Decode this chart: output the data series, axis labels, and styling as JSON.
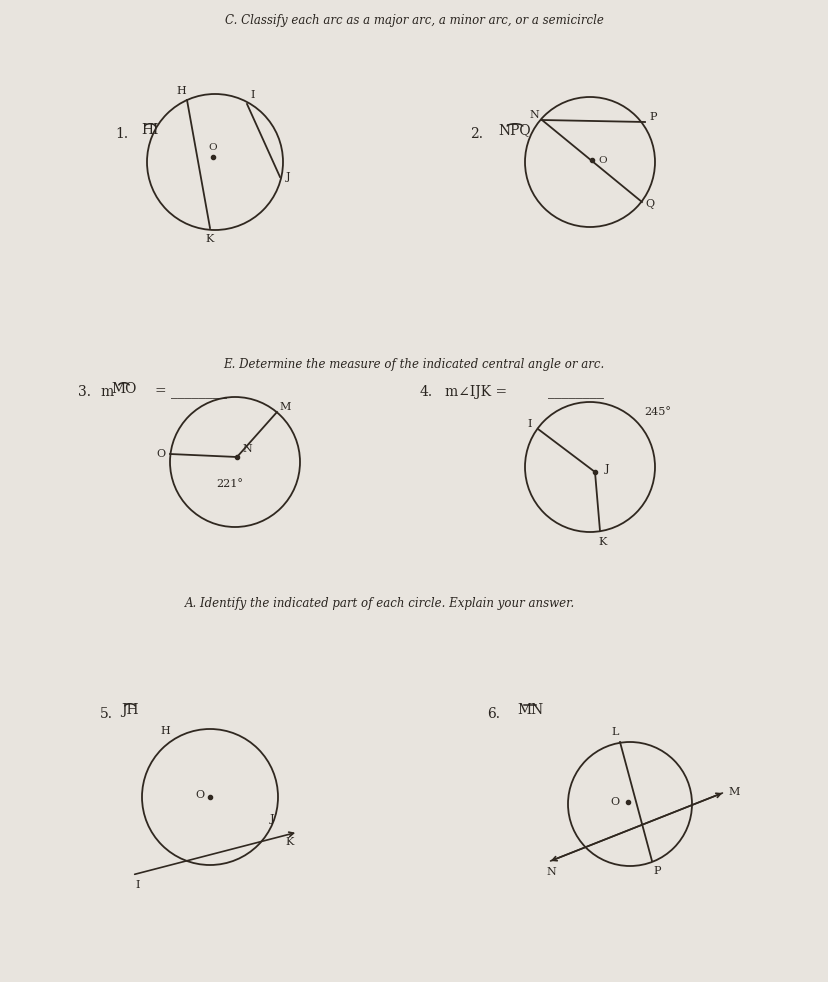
{
  "bg_color": "#e8e4de",
  "text_color": "#2a2520",
  "section_c_title": "C. Classify each arc as a major arc, a minor arc, or a semicircle",
  "section_e_title": "E. Determine the measure of the indicated central angle or arc.",
  "section_a_title": "A. Identify the indicated part of each circle. Explain your answer.",
  "q1_label": "1.",
  "q1_arc_label": "HI",
  "q2_label": "2.",
  "q2_arc_label": "NPQ",
  "q3_label": "3.",
  "q3_angle": "221°",
  "q4_label": "4.",
  "q4_angle": "245°",
  "q5_label": "5.",
  "q5_arc_label": "JH",
  "q6_label": "6.",
  "q6_arc_label": "MN",
  "circle_color": "#302820",
  "line_color": "#302820",
  "font_size_section": 8.5,
  "font_size_label": 10,
  "font_size_point": 8
}
